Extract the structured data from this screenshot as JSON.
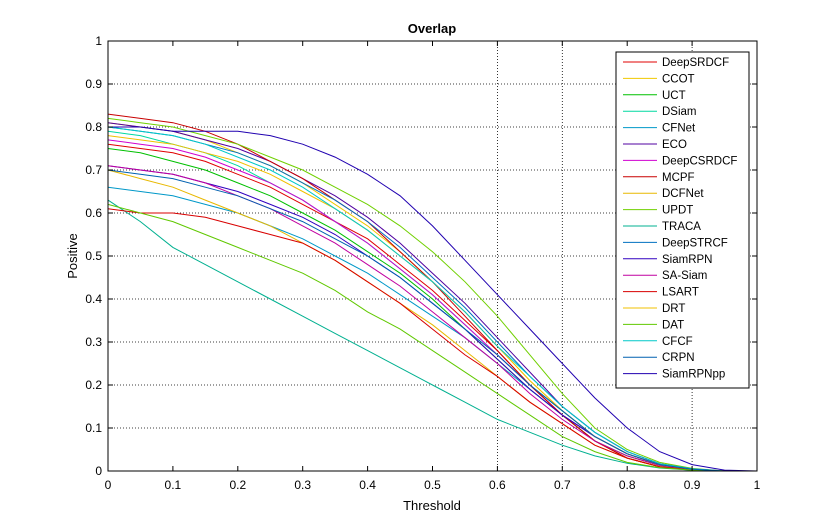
{
  "chart_data": {
    "type": "line",
    "title": "Overlap",
    "xlabel": "Threshold",
    "ylabel": "Positive",
    "xlim": [
      0,
      1
    ],
    "ylim": [
      0,
      1
    ],
    "xticks": [
      "0",
      "0.1",
      "0.2",
      "0.3",
      "0.4",
      "0.5",
      "0.6",
      "0.7",
      "0.8",
      "0.9",
      "1"
    ],
    "yticks": [
      "0",
      "0.1",
      "0.2",
      "0.3",
      "0.4",
      "0.5",
      "0.6",
      "0.7",
      "0.8",
      "0.9",
      "1"
    ],
    "vertical_gridlines_at": [
      0.6,
      0.7,
      0.9
    ],
    "horizontal_gridlines": true,
    "legend_position": "top-right",
    "x": [
      0,
      0.05,
      0.1,
      0.15,
      0.2,
      0.25,
      0.3,
      0.35,
      0.4,
      0.45,
      0.5,
      0.55,
      0.6,
      0.65,
      0.7,
      0.75,
      0.8,
      0.85,
      0.9,
      0.95,
      1.0
    ],
    "series": [
      {
        "name": "DeepSRDCF",
        "color": "#e00000",
        "values": [
          0.76,
          0.75,
          0.74,
          0.72,
          0.69,
          0.66,
          0.62,
          0.58,
          0.54,
          0.48,
          0.42,
          0.35,
          0.28,
          0.2,
          0.13,
          0.07,
          0.03,
          0.01,
          0.003,
          0,
          0
        ]
      },
      {
        "name": "CCOT",
        "color": "#f0c800",
        "values": [
          0.81,
          0.8,
          0.79,
          0.77,
          0.74,
          0.71,
          0.67,
          0.62,
          0.57,
          0.51,
          0.44,
          0.37,
          0.29,
          0.21,
          0.14,
          0.08,
          0.04,
          0.015,
          0.004,
          0,
          0
        ]
      },
      {
        "name": "UCT",
        "color": "#00c000",
        "values": [
          0.75,
          0.74,
          0.72,
          0.7,
          0.67,
          0.64,
          0.6,
          0.56,
          0.51,
          0.46,
          0.4,
          0.33,
          0.26,
          0.19,
          0.13,
          0.07,
          0.035,
          0.013,
          0.004,
          0,
          0
        ]
      },
      {
        "name": "DSiam",
        "color": "#00d8a0",
        "values": [
          0.79,
          0.78,
          0.76,
          0.74,
          0.71,
          0.67,
          0.63,
          0.58,
          0.53,
          0.47,
          0.41,
          0.34,
          0.27,
          0.2,
          0.14,
          0.08,
          0.04,
          0.015,
          0.004,
          0,
          0
        ]
      },
      {
        "name": "CFNet",
        "color": "#0098c8",
        "values": [
          0.66,
          0.65,
          0.64,
          0.62,
          0.6,
          0.57,
          0.54,
          0.5,
          0.46,
          0.41,
          0.36,
          0.31,
          0.25,
          0.19,
          0.13,
          0.08,
          0.04,
          0.015,
          0.004,
          0,
          0
        ]
      },
      {
        "name": "ECO",
        "color": "#5000a0",
        "values": [
          0.81,
          0.8,
          0.79,
          0.77,
          0.75,
          0.72,
          0.68,
          0.64,
          0.59,
          0.53,
          0.46,
          0.39,
          0.31,
          0.23,
          0.15,
          0.09,
          0.045,
          0.017,
          0.005,
          0,
          0
        ]
      },
      {
        "name": "DeepCSRDCF",
        "color": "#d000d0",
        "values": [
          0.77,
          0.76,
          0.75,
          0.73,
          0.7,
          0.67,
          0.63,
          0.58,
          0.53,
          0.47,
          0.41,
          0.34,
          0.27,
          0.2,
          0.13,
          0.08,
          0.04,
          0.015,
          0.004,
          0,
          0
        ]
      },
      {
        "name": "MCPF",
        "color": "#c80000",
        "values": [
          0.83,
          0.82,
          0.81,
          0.79,
          0.76,
          0.72,
          0.68,
          0.63,
          0.58,
          0.51,
          0.44,
          0.36,
          0.28,
          0.2,
          0.13,
          0.07,
          0.03,
          0.01,
          0.003,
          0,
          0
        ]
      },
      {
        "name": "DCFNet",
        "color": "#e8b800",
        "values": [
          0.7,
          0.68,
          0.66,
          0.63,
          0.6,
          0.57,
          0.53,
          0.49,
          0.44,
          0.39,
          0.34,
          0.28,
          0.22,
          0.16,
          0.11,
          0.06,
          0.03,
          0.01,
          0.003,
          0,
          0
        ]
      },
      {
        "name": "UPDT",
        "color": "#70d000",
        "values": [
          0.82,
          0.81,
          0.8,
          0.78,
          0.76,
          0.73,
          0.7,
          0.66,
          0.62,
          0.57,
          0.51,
          0.44,
          0.36,
          0.27,
          0.18,
          0.1,
          0.05,
          0.02,
          0.006,
          0,
          0
        ]
      },
      {
        "name": "TRACA",
        "color": "#00b090",
        "values": [
          0.63,
          0.58,
          0.52,
          0.48,
          0.44,
          0.4,
          0.36,
          0.32,
          0.28,
          0.24,
          0.2,
          0.16,
          0.12,
          0.09,
          0.06,
          0.035,
          0.018,
          0.007,
          0.002,
          0,
          0
        ]
      },
      {
        "name": "DeepSTRCF",
        "color": "#0070c0",
        "values": [
          0.8,
          0.79,
          0.78,
          0.76,
          0.74,
          0.71,
          0.67,
          0.63,
          0.58,
          0.52,
          0.45,
          0.38,
          0.3,
          0.22,
          0.15,
          0.09,
          0.045,
          0.017,
          0.005,
          0,
          0
        ]
      },
      {
        "name": "SiamRPN",
        "color": "#3000c0",
        "values": [
          0.71,
          0.7,
          0.69,
          0.67,
          0.65,
          0.62,
          0.59,
          0.55,
          0.5,
          0.45,
          0.39,
          0.33,
          0.26,
          0.19,
          0.13,
          0.08,
          0.04,
          0.015,
          0.004,
          0,
          0
        ]
      },
      {
        "name": "SA-Siam",
        "color": "#c000a0",
        "values": [
          0.71,
          0.7,
          0.69,
          0.67,
          0.64,
          0.61,
          0.57,
          0.53,
          0.48,
          0.43,
          0.37,
          0.31,
          0.25,
          0.18,
          0.12,
          0.07,
          0.035,
          0.013,
          0.004,
          0,
          0
        ]
      },
      {
        "name": "LSART",
        "color": "#d80000",
        "values": [
          0.61,
          0.6,
          0.6,
          0.59,
          0.57,
          0.55,
          0.53,
          0.49,
          0.44,
          0.39,
          0.33,
          0.27,
          0.22,
          0.16,
          0.11,
          0.06,
          0.03,
          0.01,
          0.003,
          0,
          0
        ]
      },
      {
        "name": "DRT",
        "color": "#f0c000",
        "values": [
          0.78,
          0.77,
          0.76,
          0.74,
          0.72,
          0.69,
          0.65,
          0.61,
          0.56,
          0.5,
          0.44,
          0.37,
          0.29,
          0.21,
          0.14,
          0.08,
          0.04,
          0.015,
          0.004,
          0,
          0
        ]
      },
      {
        "name": "DAT",
        "color": "#60c800",
        "values": [
          0.62,
          0.6,
          0.58,
          0.55,
          0.52,
          0.49,
          0.46,
          0.42,
          0.37,
          0.33,
          0.28,
          0.23,
          0.18,
          0.13,
          0.08,
          0.045,
          0.02,
          0.008,
          0.002,
          0,
          0
        ]
      },
      {
        "name": "CFCF",
        "color": "#00c8c8",
        "values": [
          0.8,
          0.79,
          0.78,
          0.76,
          0.73,
          0.7,
          0.66,
          0.61,
          0.56,
          0.5,
          0.44,
          0.37,
          0.29,
          0.22,
          0.15,
          0.09,
          0.045,
          0.017,
          0.005,
          0,
          0
        ]
      },
      {
        "name": "CRPN",
        "color": "#0060b0",
        "values": [
          0.7,
          0.69,
          0.68,
          0.66,
          0.64,
          0.61,
          0.58,
          0.54,
          0.5,
          0.45,
          0.39,
          0.33,
          0.27,
          0.2,
          0.14,
          0.08,
          0.04,
          0.015,
          0.004,
          0,
          0
        ]
      },
      {
        "name": "SiamRPNpp",
        "color": "#2000b0",
        "values": [
          0.8,
          0.8,
          0.79,
          0.79,
          0.79,
          0.78,
          0.76,
          0.73,
          0.69,
          0.64,
          0.57,
          0.49,
          0.41,
          0.33,
          0.25,
          0.17,
          0.1,
          0.045,
          0.015,
          0.002,
          0
        ]
      }
    ]
  }
}
